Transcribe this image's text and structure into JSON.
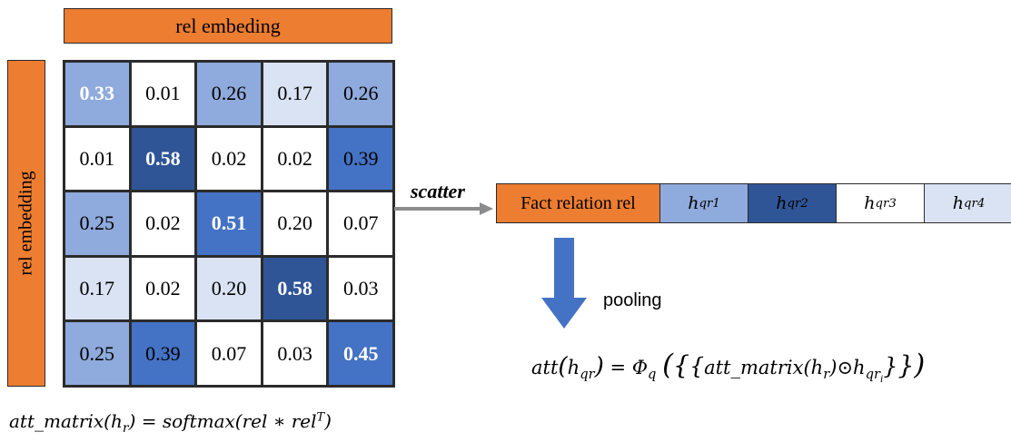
{
  "col_header": "rel embeding",
  "row_header": "rel embedding",
  "matrix": [
    [
      {
        "v": "0.33",
        "level": 2,
        "bold": true
      },
      {
        "v": "0.01",
        "level": 0
      },
      {
        "v": "0.26",
        "level": 2
      },
      {
        "v": "0.17",
        "level": 1
      },
      {
        "v": "0.26",
        "level": 2
      }
    ],
    [
      {
        "v": "0.01",
        "level": 0
      },
      {
        "v": "0.58",
        "level": 4,
        "bold": true
      },
      {
        "v": "0.02",
        "level": 0
      },
      {
        "v": "0.02",
        "level": 0
      },
      {
        "v": "0.39",
        "level": 3
      }
    ],
    [
      {
        "v": "0.25",
        "level": 2
      },
      {
        "v": "0.02",
        "level": 0
      },
      {
        "v": "0.51",
        "level": 3,
        "bold": true
      },
      {
        "v": "0.20",
        "level": 0
      },
      {
        "v": "0.07",
        "level": 0
      }
    ],
    [
      {
        "v": "0.17",
        "level": 1
      },
      {
        "v": "0.02",
        "level": 0
      },
      {
        "v": "0.20",
        "level": 1
      },
      {
        "v": "0.58",
        "level": 4,
        "bold": true
      },
      {
        "v": "0.03",
        "level": 0
      }
    ],
    [
      {
        "v": "0.25",
        "level": 2
      },
      {
        "v": "0.39",
        "level": 3
      },
      {
        "v": "0.07",
        "level": 0
      },
      {
        "v": "0.03",
        "level": 0
      },
      {
        "v": "0.45",
        "level": 3,
        "bold": true
      }
    ]
  ],
  "matrix_formula": {
    "lhs": "att_matrix",
    "arg": "h",
    "arg_sub": "r",
    "eq": " = ",
    "rhs": "softmax(rel ∗ rel",
    "rhs_sup": "T",
    "rhs_close": ")"
  },
  "scatter_label": "scatter",
  "sequence": {
    "fact_label": "Fact relation rel",
    "h_base": "h",
    "items": [
      {
        "sub": "qr1",
        "color": "#8faadc"
      },
      {
        "sub": "qr2",
        "color": "#2f5597"
      },
      {
        "sub": "qr3",
        "color": "#ffffff"
      },
      {
        "sub": "qr4",
        "color": "#dae3f3"
      }
    ]
  },
  "pooling_label": "pooling",
  "att_formula": {
    "lhs": "att",
    "lhs_arg": "h",
    "lhs_arg_sub": "qr",
    "eq": " = ",
    "phi": "Φ",
    "phi_sub": "q",
    "inner": "att_matrix",
    "inner_arg": "h",
    "inner_arg_sub": "r",
    "odot": "⊙",
    "h": "h",
    "h_sub": "qr",
    "h_subsub": "i"
  },
  "colors": {
    "orange": "#ed7d31",
    "arrow_gray": "#8c8c8c",
    "arrow_blue": "#4472c4"
  }
}
